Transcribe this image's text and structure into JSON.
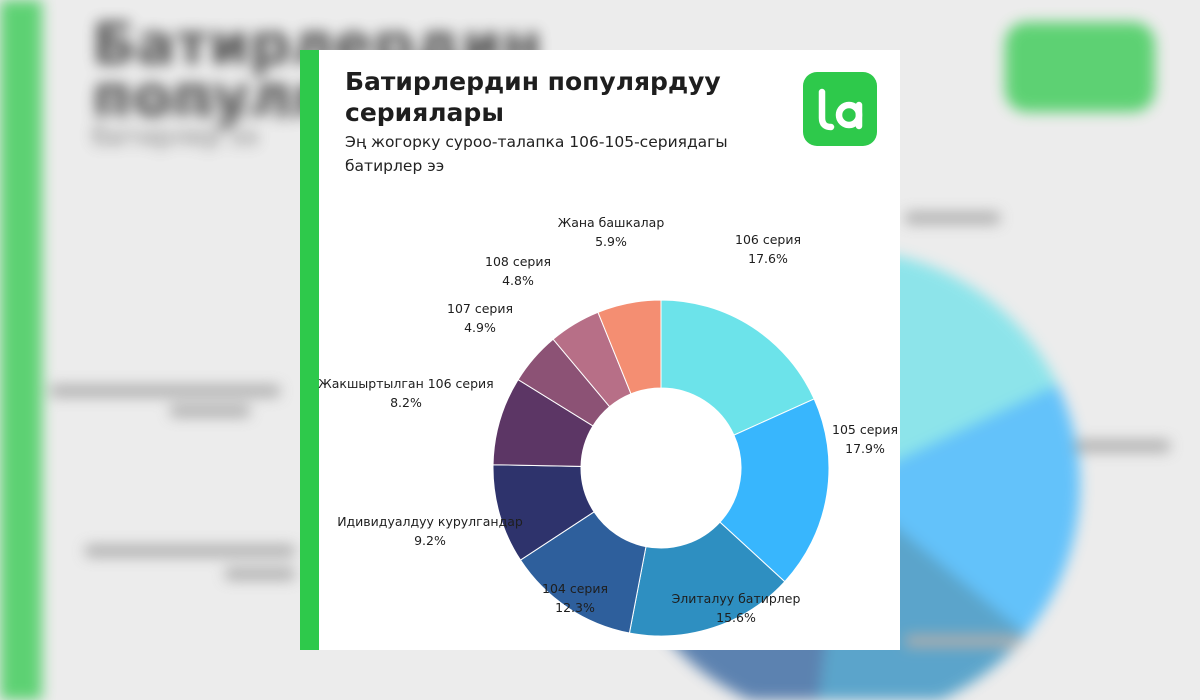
{
  "title": "Батирлердин популярдуу сериялары",
  "subtitle": "Эң жогорку суроо-талапка 106-105-сериядагы батирлер ээ",
  "logo_text": "la",
  "colors": {
    "brand_green": "#2ec94b",
    "background": "#ececec",
    "card": "#ffffff"
  },
  "chart_data": {
    "type": "pie",
    "donut": true,
    "title": "Батирлердин популярдуу сериялары",
    "subtitle": "Эң жогорку суроо-талапка 106-105-сериядагы батирлер ээ",
    "unit": "%",
    "slices": [
      {
        "label": "106 серия",
        "value": 17.6,
        "display": "17.6%",
        "color": "#6ce3ea"
      },
      {
        "label": "105 серия",
        "value": 17.9,
        "display": "17.9%",
        "color": "#38b6fd"
      },
      {
        "label": "Элиталуу батирлер",
        "value": 15.6,
        "display": "15.6%",
        "color": "#2e8fc1"
      },
      {
        "label": "104 серия",
        "value": 12.3,
        "display": "12.3%",
        "color": "#2e5f9c"
      },
      {
        "label": "Идивидуалдуу курулгандар",
        "value": 9.2,
        "display": "9.2%",
        "color": "#2e336c"
      },
      {
        "label": "Жакшыртылган 106 серия",
        "value": 8.2,
        "display": "8.2%",
        "color": "#5c3665"
      },
      {
        "label": "107 серия",
        "value": 4.9,
        "display": "4.9%",
        "color": "#8c5275"
      },
      {
        "label": "108 серия",
        "value": 4.8,
        "display": "4.8%",
        "color": "#b76f87"
      },
      {
        "label": "Жана башкалар",
        "value": 5.9,
        "display": "5.9%",
        "color": "#f48e72"
      }
    ]
  }
}
